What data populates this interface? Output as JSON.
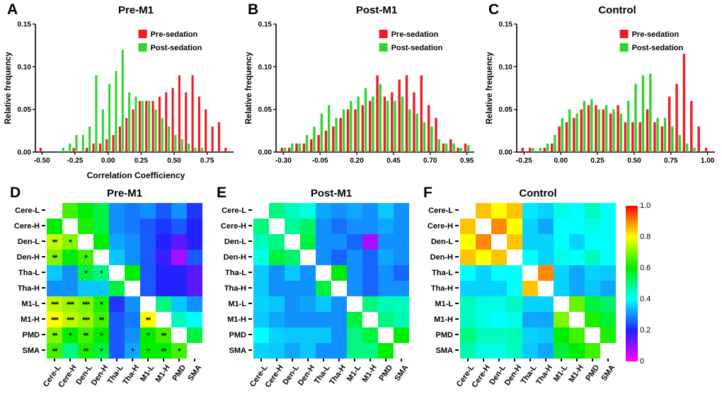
{
  "legend": {
    "pre": "Pre-sedation",
    "post": "Post-sedation"
  },
  "colors": {
    "pre": "#ed1c24",
    "post": "#2fd52f",
    "axis": "#000000",
    "background": "#ffffff"
  },
  "colorbar": {
    "ticks": [
      "1.0",
      "0.8",
      "0.6",
      "0.4",
      "0.2",
      "0"
    ]
  },
  "colormap_stops": [
    [
      0,
      "#ff00ff"
    ],
    [
      0.2,
      "#2222ff"
    ],
    [
      0.4,
      "#00ffff"
    ],
    [
      0.6,
      "#00ee00"
    ],
    [
      0.8,
      "#ffff00"
    ],
    [
      0.9,
      "#ff8800"
    ],
    [
      1,
      "#ff0000"
    ]
  ],
  "chart_data": [
    {
      "type": "bar",
      "letter": "A",
      "title": "Pre-M1",
      "xlabel": "Correlation Coefficiency",
      "ylabel": "Relative frequency",
      "xlim": [
        -0.55,
        0.95
      ],
      "ylim": [
        0,
        0.15
      ],
      "xticks": [
        "-0.50",
        "-0.25",
        "0.00",
        "0.25",
        "0.50",
        "0.75"
      ],
      "yticks": [
        "0.00",
        "0.05",
        "0.10",
        "0.15"
      ],
      "bin_width": 0.05,
      "bins": [
        -0.5,
        -0.45,
        -0.4,
        -0.35,
        -0.3,
        -0.25,
        -0.2,
        -0.15,
        -0.1,
        -0.05,
        0.0,
        0.05,
        0.1,
        0.15,
        0.2,
        0.25,
        0.3,
        0.35,
        0.4,
        0.45,
        0.5,
        0.55,
        0.6,
        0.65,
        0.7,
        0.75,
        0.8,
        0.85,
        0.9
      ],
      "series": [
        {
          "name": "Pre-sedation",
          "values": [
            0.005,
            0,
            0,
            0,
            0,
            0.005,
            0,
            0.005,
            0.01,
            0.01,
            0.015,
            0.02,
            0.03,
            0.04,
            0.05,
            0.06,
            0.06,
            0.06,
            0.065,
            0.07,
            0.075,
            0.09,
            0.07,
            0.09,
            0.065,
            0.05,
            0.03,
            0.035,
            0.005
          ]
        },
        {
          "name": "Post-sedation",
          "values": [
            0,
            0,
            0,
            0.005,
            0.01,
            0.02,
            0.02,
            0.03,
            0.09,
            0.05,
            0.08,
            0.095,
            0.12,
            0.07,
            0.065,
            0.06,
            0.06,
            0.05,
            0.04,
            0.03,
            0.02,
            0.015,
            0.01,
            0.005,
            0.005,
            0,
            0,
            0,
            0
          ]
        }
      ]
    },
    {
      "type": "bar",
      "letter": "B",
      "title": "Post-M1",
      "xlabel": "",
      "ylabel": "Relative frequency",
      "xlim": [
        -0.35,
        1.0
      ],
      "ylim": [
        0,
        0.15
      ],
      "xticks": [
        "-0.30",
        "-0.05",
        "0.20",
        "0.45",
        "0.70",
        "0.95"
      ],
      "yticks": [
        "0.00",
        "0.05",
        "0.10",
        "0.15"
      ],
      "bin_width": 0.05,
      "bins": [
        -0.3,
        -0.25,
        -0.2,
        -0.15,
        -0.1,
        -0.05,
        0.0,
        0.05,
        0.1,
        0.15,
        0.2,
        0.25,
        0.3,
        0.35,
        0.4,
        0.45,
        0.5,
        0.55,
        0.6,
        0.65,
        0.7,
        0.75,
        0.8,
        0.85,
        0.9,
        0.95
      ],
      "series": [
        {
          "name": "Pre-sedation",
          "values": [
            0.005,
            0.005,
            0.01,
            0.01,
            0.015,
            0.02,
            0.025,
            0.03,
            0.04,
            0.05,
            0.05,
            0.055,
            0.06,
            0.09,
            0.065,
            0.07,
            0.085,
            0.09,
            0.07,
            0.09,
            0.055,
            0.04,
            0.01,
            0.015,
            0.005,
            0.01
          ]
        },
        {
          "name": "Post-sedation",
          "values": [
            0.005,
            0.01,
            0.01,
            0.02,
            0.03,
            0.045,
            0.055,
            0.04,
            0.05,
            0.06,
            0.065,
            0.075,
            0.065,
            0.08,
            0.06,
            0.06,
            0.065,
            0.05,
            0.045,
            0.035,
            0.03,
            0.015,
            0.01,
            0.01,
            0.005,
            0.008
          ]
        }
      ]
    },
    {
      "type": "bar",
      "letter": "C",
      "title": "Control",
      "xlabel": "",
      "ylabel": "Relative frequency",
      "xlim": [
        -0.3,
        1.05
      ],
      "ylim": [
        0,
        0.15
      ],
      "xticks": [
        "-0.25",
        "0.00",
        "0.25",
        "0.50",
        "0.75",
        "1.00"
      ],
      "yticks": [
        "0.00",
        "0.05",
        "0.10",
        "0.15"
      ],
      "bin_width": 0.05,
      "bins": [
        -0.25,
        -0.2,
        -0.15,
        -0.1,
        -0.05,
        0.0,
        0.05,
        0.1,
        0.15,
        0.2,
        0.25,
        0.3,
        0.35,
        0.4,
        0.45,
        0.5,
        0.55,
        0.6,
        0.65,
        0.7,
        0.75,
        0.8,
        0.85,
        0.9,
        0.95,
        1.0
      ],
      "series": [
        {
          "name": "Pre-sedation",
          "values": [
            0.005,
            0.005,
            0,
            0.005,
            0.01,
            0.03,
            0.035,
            0.04,
            0.05,
            0.055,
            0.055,
            0.05,
            0.045,
            0.055,
            0.035,
            0.035,
            0.035,
            0.05,
            0.035,
            0.03,
            0.065,
            0.08,
            0.115,
            0.06,
            0.03,
            0.005
          ]
        },
        {
          "name": "Post-sedation",
          "values": [
            0,
            0.005,
            0.005,
            0.01,
            0.02,
            0.04,
            0.05,
            0.045,
            0.06,
            0.062,
            0.05,
            0.055,
            0.05,
            0.045,
            0.06,
            0.08,
            0.09,
            0.092,
            0.04,
            0.04,
            0.03,
            0.02,
            0.01,
            0.005,
            0,
            0
          ]
        }
      ]
    },
    {
      "type": "heatmap",
      "letter": "D",
      "title": "Pre-M1",
      "labels": [
        "Cere-L",
        "Cere-H",
        "Den-L",
        "Den-H",
        "Tha-L",
        "Tha-H",
        "M1-L",
        "M1-H",
        "PMD",
        "SMA"
      ],
      "value_range": [
        0,
        1
      ],
      "matrix": [
        [
          null,
          0.65,
          0.6,
          0.55,
          0.3,
          0.28,
          0.3,
          0.25,
          0.3,
          0.22
        ],
        [
          0.6,
          null,
          0.62,
          0.55,
          0.3,
          0.28,
          0.25,
          0.22,
          0.25,
          0.2
        ],
        [
          0.75,
          0.7,
          null,
          0.6,
          0.32,
          0.3,
          0.25,
          0.2,
          0.15,
          0.2
        ],
        [
          0.7,
          0.6,
          0.65,
          null,
          0.35,
          0.3,
          0.25,
          0.18,
          0.08,
          0.25
        ],
        [
          0.35,
          0.3,
          0.55,
          0.5,
          null,
          0.6,
          0.25,
          0.2,
          0.2,
          0.15
        ],
        [
          0.3,
          0.3,
          0.35,
          0.35,
          0.55,
          null,
          0.25,
          0.2,
          0.2,
          0.15
        ],
        [
          0.75,
          0.72,
          0.7,
          0.62,
          0.22,
          0.3,
          null,
          0.5,
          0.35,
          0.3
        ],
        [
          0.8,
          0.75,
          0.72,
          0.65,
          0.25,
          0.28,
          0.8,
          null,
          0.45,
          0.4
        ],
        [
          0.7,
          0.6,
          0.65,
          0.6,
          0.25,
          0.3,
          0.6,
          0.65,
          null,
          0.55
        ],
        [
          0.65,
          0.5,
          0.62,
          0.55,
          0.25,
          0.32,
          0.6,
          0.6,
          0.65,
          null
        ]
      ],
      "stars": [
        [
          "",
          "",
          "",
          "",
          "",
          "",
          "",
          "",
          "",
          ""
        ],
        [
          "",
          "",
          "",
          "",
          "",
          "",
          "",
          "",
          "",
          ""
        ],
        [
          "**",
          "*",
          "",
          "",
          "",
          "",
          "",
          "",
          "",
          ""
        ],
        [
          "**",
          "",
          "*",
          "",
          "",
          "",
          "",
          "",
          "",
          ""
        ],
        [
          "",
          "",
          "*",
          "*",
          "",
          "",
          "",
          "",
          "",
          ""
        ],
        [
          "",
          "",
          "",
          "",
          "",
          "",
          "",
          "",
          "",
          ""
        ],
        [
          "***",
          "***",
          "***",
          "*",
          "",
          "",
          "",
          "",
          "",
          ""
        ],
        [
          "***",
          "***",
          "***",
          "**",
          "",
          "",
          "**",
          "",
          "",
          ""
        ],
        [
          "**",
          "*",
          "**",
          "*",
          "",
          "",
          "*",
          "**",
          "",
          ""
        ],
        [
          "**",
          "",
          "**",
          "*",
          "",
          "*",
          "*",
          "**",
          "*",
          ""
        ]
      ]
    },
    {
      "type": "heatmap",
      "letter": "E",
      "title": "Post-M1",
      "labels": [
        "Cere-L",
        "Cere-H",
        "Den-L",
        "Den-H",
        "Tha-L",
        "Tha-H",
        "M1-L",
        "M1-H",
        "PMD",
        "SMA"
      ],
      "value_range": [
        0,
        1
      ],
      "matrix": [
        [
          null,
          0.5,
          0.45,
          0.42,
          0.32,
          0.3,
          0.32,
          0.3,
          0.35,
          0.3
        ],
        [
          0.5,
          null,
          0.48,
          0.52,
          0.3,
          0.27,
          0.3,
          0.3,
          0.32,
          0.3
        ],
        [
          0.45,
          0.5,
          null,
          0.55,
          0.3,
          0.3,
          0.26,
          0.08,
          0.3,
          0.3
        ],
        [
          0.42,
          0.55,
          0.52,
          null,
          0.3,
          0.26,
          0.3,
          0.26,
          0.32,
          0.3
        ],
        [
          0.35,
          0.3,
          0.35,
          0.3,
          null,
          0.6,
          0.3,
          0.26,
          0.3,
          0.26
        ],
        [
          0.35,
          0.3,
          0.3,
          0.3,
          0.55,
          null,
          0.3,
          0.26,
          0.3,
          0.3
        ],
        [
          0.36,
          0.35,
          0.3,
          0.32,
          0.35,
          0.3,
          null,
          0.5,
          0.46,
          0.45
        ],
        [
          0.35,
          0.32,
          0.3,
          0.3,
          0.3,
          0.3,
          0.55,
          null,
          0.5,
          0.46
        ],
        [
          0.4,
          0.36,
          0.35,
          0.35,
          0.35,
          0.3,
          0.5,
          0.55,
          null,
          0.6
        ],
        [
          0.36,
          0.35,
          0.32,
          0.35,
          0.3,
          0.3,
          0.5,
          0.5,
          0.6,
          null
        ]
      ],
      "stars": null
    },
    {
      "type": "heatmap",
      "letter": "F",
      "title": "Control",
      "labels": [
        "Cere-L",
        "Cere-H",
        "Den-L",
        "Den-H",
        "Tha-L",
        "Tha-H",
        "M1-L",
        "M1-H",
        "PMD",
        "SMA"
      ],
      "value_range": [
        0,
        1
      ],
      "matrix": [
        [
          null,
          0.85,
          0.8,
          0.85,
          0.38,
          0.36,
          0.42,
          0.4,
          0.45,
          0.4
        ],
        [
          0.85,
          null,
          0.9,
          0.8,
          0.36,
          0.32,
          0.4,
          0.4,
          0.42,
          0.4
        ],
        [
          0.8,
          0.9,
          null,
          0.85,
          0.36,
          0.36,
          0.4,
          0.36,
          0.4,
          0.4
        ],
        [
          0.85,
          0.8,
          0.85,
          null,
          0.4,
          0.36,
          0.42,
          0.4,
          0.45,
          0.4
        ],
        [
          0.4,
          0.36,
          0.4,
          0.4,
          null,
          0.9,
          0.36,
          0.32,
          0.36,
          0.35
        ],
        [
          0.36,
          0.36,
          0.36,
          0.4,
          0.85,
          null,
          0.36,
          0.32,
          0.35,
          0.32
        ],
        [
          0.45,
          0.42,
          0.42,
          0.45,
          0.36,
          0.36,
          null,
          0.68,
          0.55,
          0.52
        ],
        [
          0.45,
          0.42,
          0.4,
          0.42,
          0.32,
          0.32,
          0.7,
          null,
          0.62,
          0.56
        ],
        [
          0.5,
          0.45,
          0.45,
          0.46,
          0.36,
          0.35,
          0.6,
          0.65,
          null,
          0.62
        ],
        [
          0.46,
          0.42,
          0.42,
          0.45,
          0.35,
          0.32,
          0.56,
          0.6,
          0.65,
          null
        ]
      ],
      "stars": null
    }
  ]
}
